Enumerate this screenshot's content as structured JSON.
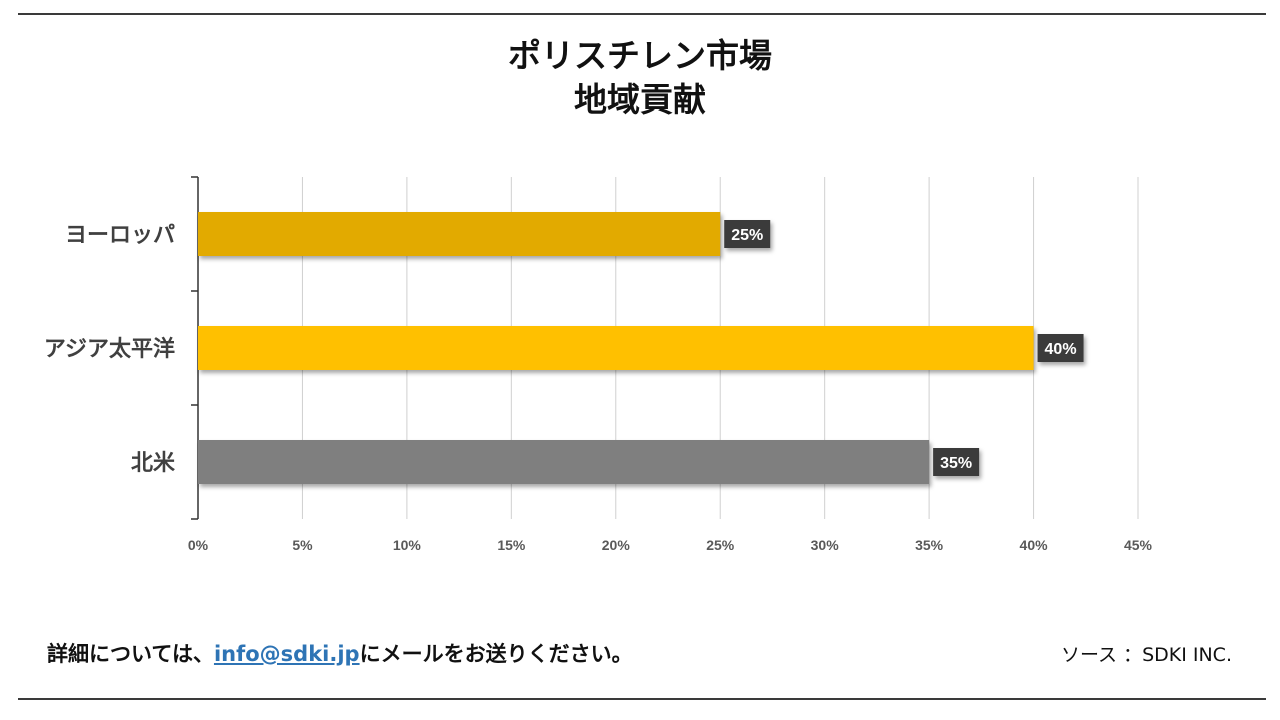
{
  "header": {
    "title_line1": "ポリスチレン市場",
    "title_line2": "地域貢献"
  },
  "chart_data": {
    "type": "bar",
    "orientation": "horizontal",
    "categories": [
      "ヨーロッパ",
      "アジア太平洋",
      "北米"
    ],
    "values": [
      25,
      40,
      35
    ],
    "data_labels": [
      "25%",
      "40%",
      "35%"
    ],
    "colors": [
      "#e2aa00",
      "#ffc000",
      "#7f7f7f"
    ],
    "xlim": [
      0,
      45
    ],
    "x_ticks": [
      "0%",
      "5%",
      "10%",
      "15%",
      "20%",
      "25%",
      "30%",
      "35%",
      "40%",
      "45%"
    ],
    "grid": "vertical",
    "legend": "none"
  },
  "footer": {
    "contact_prefix": "詳細については、",
    "contact_email": "info@sdki.jp",
    "contact_suffix": "にメールをお送りください。",
    "source": "ソース ：SDKI INC."
  }
}
